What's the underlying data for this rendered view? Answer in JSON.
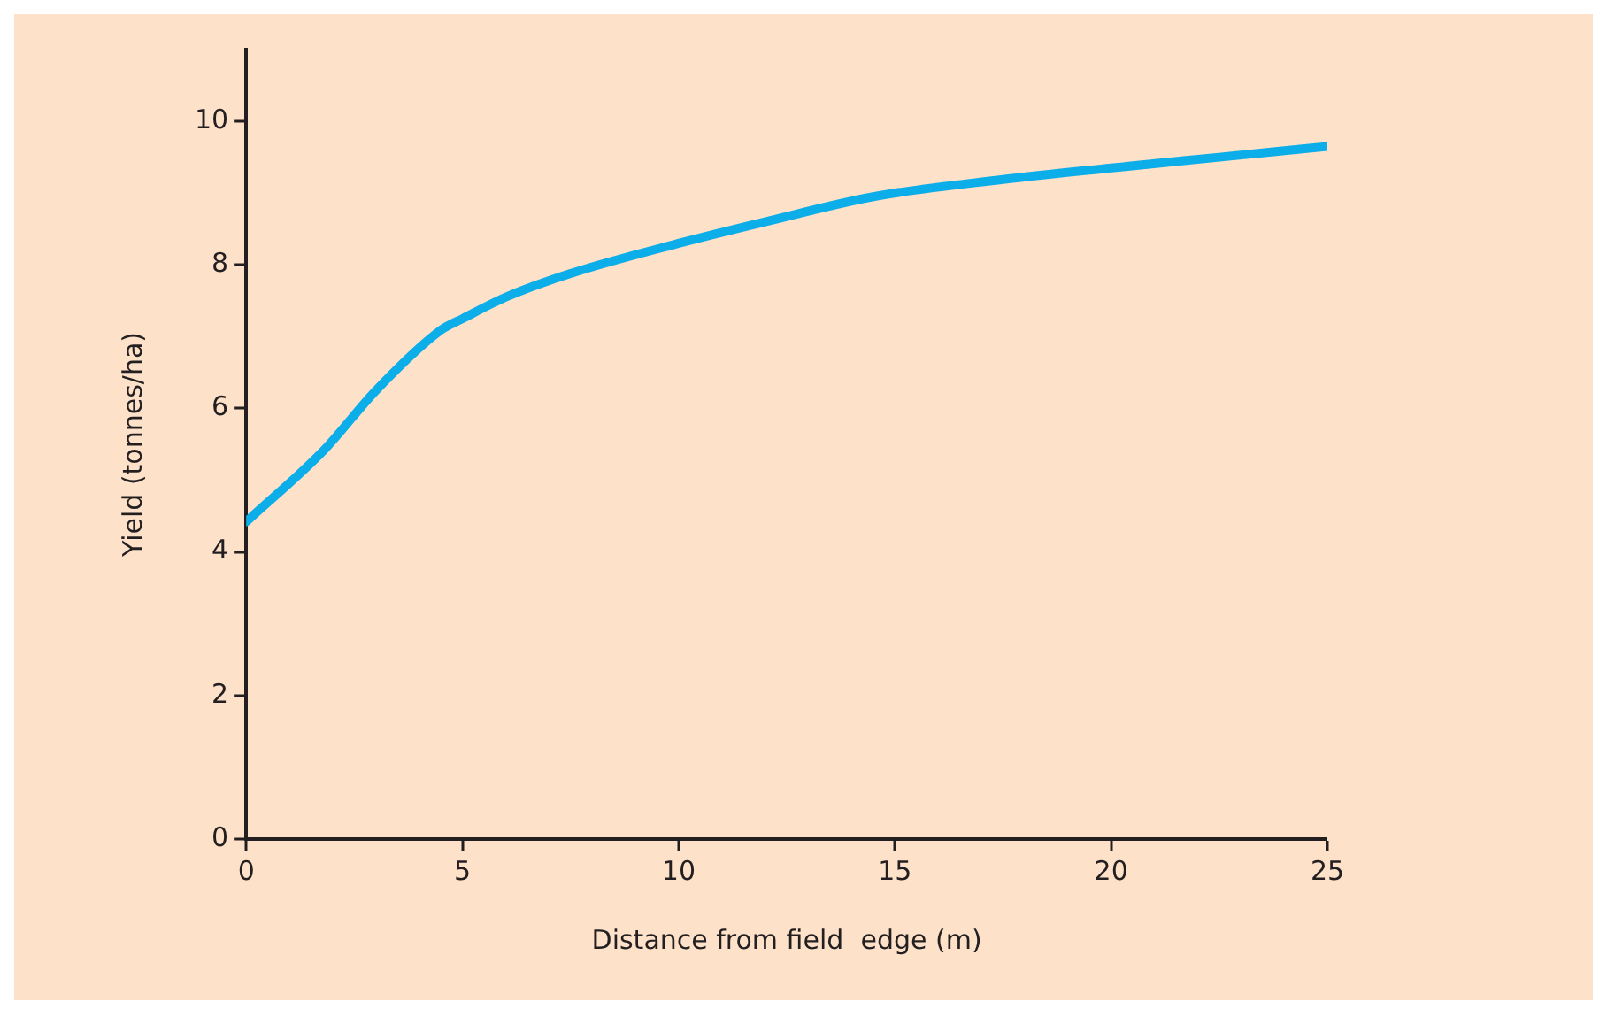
{
  "chart_data": {
    "type": "line",
    "xlabel": "Distance from field  edge (m)",
    "ylabel": "Yield (tonnes/ha)",
    "x": [
      0,
      1.8,
      3,
      4.5,
      5,
      6,
      7.5,
      10,
      12,
      14.5,
      17.5,
      20,
      22.5,
      25
    ],
    "series": [
      {
        "color": "#0baee8",
        "values": [
          4.42,
          5.42,
          6.25,
          7.09,
          7.25,
          7.55,
          7.88,
          8.3,
          8.6,
          8.95,
          9.19,
          9.35,
          9.5,
          9.65
        ]
      }
    ],
    "xlim": [
      0,
      25
    ],
    "xticks": [
      0,
      5,
      10,
      15,
      20,
      25
    ],
    "ylim": [
      0,
      11
    ],
    "yticks": [
      0,
      2,
      4,
      6,
      8,
      10
    ],
    "grid": false,
    "legend": false,
    "marker": "none",
    "line_style": "solid"
  }
}
